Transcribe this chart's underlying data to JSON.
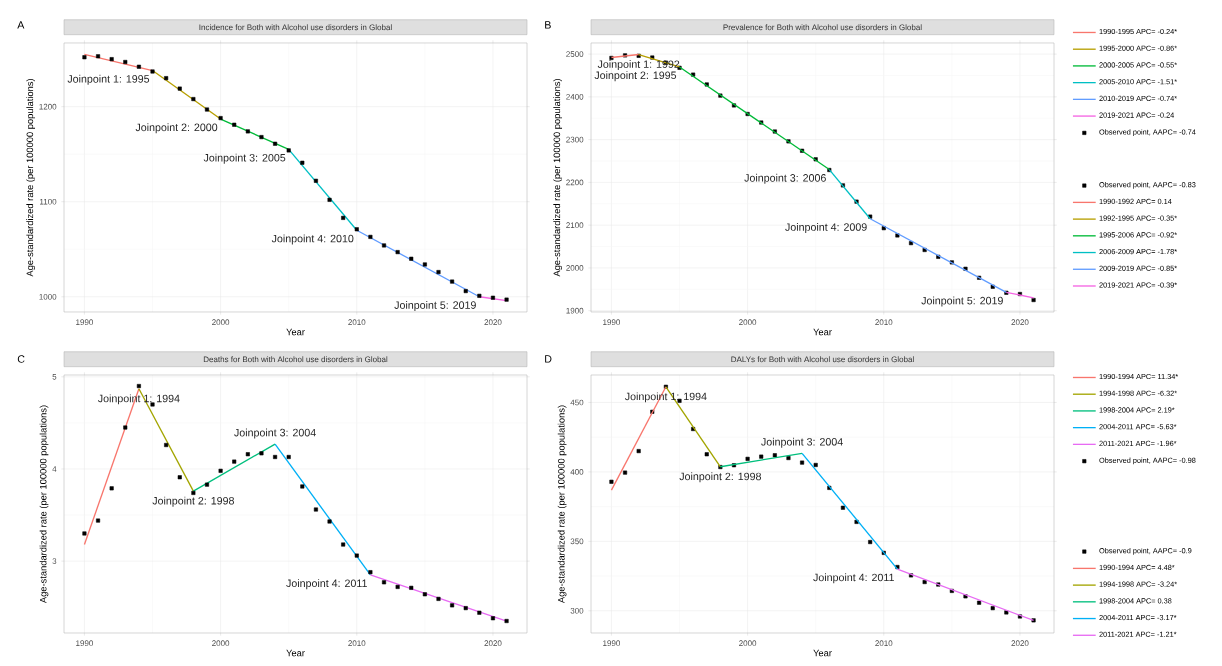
{
  "chart_data": [
    {
      "type": "line",
      "title": "Incidence for Both with Alcohol use disorders in Global",
      "xlabel": "Year",
      "ylabel": "Age-standardized rate (per 100000 populations)",
      "x": [
        1990,
        1991,
        1992,
        1993,
        1994,
        1995,
        1996,
        1997,
        1998,
        1999,
        2000,
        2001,
        2002,
        2003,
        2004,
        2005,
        2006,
        2007,
        2008,
        2009,
        2010,
        2011,
        2012,
        2013,
        2014,
        2015,
        2016,
        2017,
        2018,
        2019,
        2020,
        2021
      ],
      "series": [
        {
          "name": "1990-1995 APC= -0.24*",
          "color": "#F8766D",
          "x": [
            1990,
            1995
          ],
          "values": [
            1255,
            1238
          ]
        },
        {
          "name": "1995-2000 APC= -0.86*",
          "color": "#B79F00",
          "x": [
            1995,
            2000
          ],
          "values": [
            1238,
            1187
          ]
        },
        {
          "name": "2000-2005 APC= -0.55*",
          "color": "#00BA38",
          "x": [
            2000,
            2005
          ],
          "values": [
            1187,
            1155
          ]
        },
        {
          "name": "2005-2010 APC= -1.51*",
          "color": "#00BFC4",
          "x": [
            2005,
            2010
          ],
          "values": [
            1155,
            1070
          ]
        },
        {
          "name": "2010-2019 APC= -0.74*",
          "color": "#619CFF",
          "x": [
            2010,
            2019
          ],
          "values": [
            1070,
            1000
          ]
        },
        {
          "name": "2019-2021 APC= -0.24",
          "color": "#F564E3",
          "x": [
            2019,
            2021
          ],
          "values": [
            1000,
            996
          ]
        },
        {
          "name": "Observed point, AAPC= -0.74",
          "type": "scatter",
          "marker": "square",
          "color": "#000000",
          "values": [
            1252,
            1253,
            1250,
            1247,
            1242,
            1237,
            1230,
            1219,
            1208,
            1197,
            1188,
            1181,
            1174,
            1168,
            1161,
            1154,
            1141,
            1122,
            1102,
            1083,
            1071,
            1063,
            1054,
            1047,
            1040,
            1034,
            1026,
            1016,
            1006,
            1001,
            999,
            997
          ]
        }
      ],
      "xlim": [
        1988.5,
        2022.5
      ],
      "ylim": [
        984,
        1267
      ],
      "xticks": [
        1990,
        2000,
        2010,
        2020
      ],
      "yticks": [
        1000,
        1100,
        1200
      ],
      "grid": true,
      "legend": "right",
      "annotations": [
        "A",
        {
          "text": "Joinpoint 1: 1995",
          "x": 1995,
          "y": 1238
        },
        {
          "text": "Joinpoint 2: 2000",
          "x": 2000,
          "y": 1187
        },
        {
          "text": "Joinpoint 3: 2005",
          "x": 2005,
          "y": 1155
        },
        {
          "text": "Joinpoint 4: 2010",
          "x": 2010,
          "y": 1070
        },
        {
          "text": "Joinpoint 5: 2019",
          "x": 2019,
          "y": 1000
        }
      ]
    },
    {
      "type": "line",
      "title": "Prevalence for Both with Alcohol use disorders in Global",
      "xlabel": "Year",
      "ylabel": "Age-standardized rate (per 100000 populations)",
      "x": [
        1990,
        1991,
        1992,
        1993,
        1994,
        1995,
        1996,
        1997,
        1998,
        1999,
        2000,
        2001,
        2002,
        2003,
        2004,
        2005,
        2006,
        2007,
        2008,
        2009,
        2010,
        2011,
        2012,
        2013,
        2014,
        2015,
        2016,
        2017,
        2018,
        2019,
        2020,
        2021
      ],
      "series": [
        {
          "name": "Observed point, AAPC= -0.83",
          "type": "scatter",
          "marker": "square",
          "color": "#000000",
          "values": [
            2491,
            2497,
            2496,
            2492,
            2480,
            2468,
            2452,
            2429,
            2403,
            2380,
            2360,
            2340,
            2319,
            2296,
            2274,
            2254,
            2229,
            2193,
            2155,
            2120,
            2093,
            2076,
            2058,
            2042,
            2026,
            2013,
            1998,
            1977,
            1956,
            1942,
            1939,
            1925
          ]
        },
        {
          "name": "1990-1992 APC= 0.14",
          "color": "#F8766D",
          "x": [
            1990,
            1992
          ],
          "values": [
            2492,
            2499
          ]
        },
        {
          "name": "1992-1995 APC= -0.35*",
          "color": "#B79F00",
          "x": [
            1992,
            1995
          ],
          "values": [
            2499,
            2470
          ]
        },
        {
          "name": "1995-2006 APC= -0.92*",
          "color": "#00BA38",
          "x": [
            1995,
            2006
          ],
          "values": [
            2470,
            2230
          ]
        },
        {
          "name": "2006-2009 APC= -1.78*",
          "color": "#00BFC4",
          "x": [
            2006,
            2009
          ],
          "values": [
            2230,
            2115
          ]
        },
        {
          "name": "2009-2019 APC= -0.85*",
          "color": "#619CFF",
          "x": [
            2009,
            2019
          ],
          "values": [
            2115,
            1943
          ]
        },
        {
          "name": "2019-2021 APC= -0.39*",
          "color": "#F564E3",
          "x": [
            2019,
            2021
          ],
          "values": [
            1943,
            1930
          ]
        }
      ],
      "xlim": [
        1988.5,
        2022.5
      ],
      "ylim": [
        1897,
        2526
      ],
      "xticks": [
        1990,
        2000,
        2010,
        2020
      ],
      "yticks": [
        1900,
        2000,
        2100,
        2200,
        2300,
        2400,
        2500
      ],
      "grid": true,
      "legend": "right",
      "annotations": [
        "B",
        {
          "text": "Joinpoint 1: 1992",
          "x": 1992,
          "y": 2499
        },
        {
          "text": "Joinpoint 2: 1995",
          "x": 1995,
          "y": 2470
        },
        {
          "text": "Joinpoint 3: 2006",
          "x": 2006,
          "y": 2230
        },
        {
          "text": "Joinpoint 4: 2009",
          "x": 2009,
          "y": 2115
        },
        {
          "text": "Joinpoint 5: 2019",
          "x": 2019,
          "y": 1943
        }
      ]
    },
    {
      "type": "line",
      "title": "Deaths for Both with Alcohol use disorders in Global",
      "xlabel": "Year",
      "ylabel": "Age-standardized rate (per 100000 populations)",
      "x": [
        1990,
        1991,
        1992,
        1993,
        1994,
        1995,
        1996,
        1997,
        1998,
        1999,
        2000,
        2001,
        2002,
        2003,
        2004,
        2005,
        2006,
        2007,
        2008,
        2009,
        2010,
        2011,
        2012,
        2013,
        2014,
        2015,
        2016,
        2017,
        2018,
        2019,
        2020,
        2021
      ],
      "series": [
        {
          "name": "1990-1994 APC= 11.34*",
          "color": "#F8766D",
          "x": [
            1990,
            1994
          ],
          "values": [
            3.18,
            4.87
          ]
        },
        {
          "name": "1994-1998 APC= -6.32*",
          "color": "#A3A500",
          "x": [
            1994,
            1998
          ],
          "values": [
            4.87,
            3.76
          ]
        },
        {
          "name": "1998-2004 APC= 2.19*",
          "color": "#00BF7D",
          "x": [
            1998,
            2004
          ],
          "values": [
            3.76,
            4.27
          ]
        },
        {
          "name": "2004-2011 APC= -5.63*",
          "color": "#00B0F6",
          "x": [
            2004,
            2011
          ],
          "values": [
            4.27,
            2.85
          ]
        },
        {
          "name": "2011-2021 APC= -1.96*",
          "color": "#E76BF3",
          "x": [
            2011,
            2021
          ],
          "values": [
            2.85,
            2.35
          ]
        },
        {
          "name": "Observed point, AAPC= -0.98",
          "type": "scatter",
          "marker": "square",
          "color": "#000000",
          "values": [
            3.3,
            3.44,
            3.79,
            4.45,
            4.9,
            4.7,
            4.26,
            3.91,
            3.74,
            3.83,
            3.98,
            4.08,
            4.16,
            4.17,
            4.13,
            4.13,
            3.81,
            3.56,
            3.43,
            3.18,
            3.06,
            2.88,
            2.77,
            2.72,
            2.71,
            2.64,
            2.59,
            2.52,
            2.49,
            2.44,
            2.38,
            2.35
          ]
        }
      ],
      "xlim": [
        1988.5,
        2022.5
      ],
      "ylim": [
        2.22,
        5.02
      ],
      "xticks": [
        1990,
        2000,
        2010,
        2020
      ],
      "yticks": [
        3,
        4,
        5
      ],
      "grid": true,
      "legend": "right",
      "annotations": [
        "C",
        {
          "text": "Joinpoint 1: 1994",
          "x": 1994,
          "y": 4.87
        },
        {
          "text": "Joinpoint 2: 1998",
          "x": 1998,
          "y": 3.76
        },
        {
          "text": "Joinpoint 3: 2004",
          "x": 2004,
          "y": 4.27
        },
        {
          "text": "Joinpoint 4: 2011",
          "x": 2011,
          "y": 2.85
        }
      ]
    },
    {
      "type": "line",
      "title": "DALYs for Both with Alcohol use disorders in Global",
      "xlabel": "Year",
      "ylabel": "Age-standardized rate (per 100000 populations)",
      "x": [
        1990,
        1991,
        1992,
        1993,
        1994,
        1995,
        1996,
        1997,
        1998,
        1999,
        2000,
        2001,
        2002,
        2003,
        2004,
        2005,
        2006,
        2007,
        2008,
        2009,
        2010,
        2011,
        2012,
        2013,
        2014,
        2015,
        2016,
        2017,
        2018,
        2019,
        2020,
        2021
      ],
      "series": [
        {
          "name": "Observed point, AAPC= -0.9",
          "type": "scatter",
          "marker": "square",
          "color": "#000000",
          "values": [
            392.9,
            399.5,
            415,
            443.3,
            461.3,
            451.2,
            430.9,
            412.7,
            403.5,
            404.8,
            409.4,
            411,
            412,
            410,
            406.7,
            405,
            388.5,
            374.2,
            364,
            349.5,
            341.7,
            331.5,
            325.5,
            320.7,
            318.9,
            314.3,
            310.4,
            305.8,
            301.9,
            298.8,
            295.9,
            293.1
          ]
        },
        {
          "name": "1990-1994 APC= 4.48*",
          "color": "#F8766D",
          "x": [
            1990,
            1994
          ],
          "values": [
            386.9,
            461.3
          ]
        },
        {
          "name": "1994-1998 APC= -3.24*",
          "color": "#A3A500",
          "x": [
            1994,
            1998
          ],
          "values": [
            461.3,
            403.7
          ]
        },
        {
          "name": "1998-2004 APC= 0.38",
          "color": "#00BF7D",
          "x": [
            1998,
            2004
          ],
          "values": [
            403.7,
            413.4
          ]
        },
        {
          "name": "2004-2011 APC= -3.17*",
          "color": "#00B0F6",
          "x": [
            2004,
            2011
          ],
          "values": [
            413.4,
            330
          ]
        },
        {
          "name": "2011-2021 APC= -1.21*",
          "color": "#E76BF3",
          "x": [
            2011,
            2021
          ],
          "values": [
            330,
            293
          ]
        }
      ],
      "xlim": [
        1988.5,
        2022.5
      ],
      "ylim": [
        284,
        469.8
      ],
      "xticks": [
        1990,
        2000,
        2010,
        2020
      ],
      "yticks": [
        300,
        350,
        400,
        450
      ],
      "grid": true,
      "legend": "right",
      "annotations": [
        "D",
        {
          "text": "Joinpoint 1: 1994",
          "x": 1994,
          "y": 461.3
        },
        {
          "text": "Joinpoint 2: 1998",
          "x": 1998,
          "y": 403.7
        },
        {
          "text": "Joinpoint 3: 2004",
          "x": 2004,
          "y": 413.4
        },
        {
          "text": "Joinpoint 4: 2011",
          "x": 2011,
          "y": 330
        }
      ]
    }
  ]
}
